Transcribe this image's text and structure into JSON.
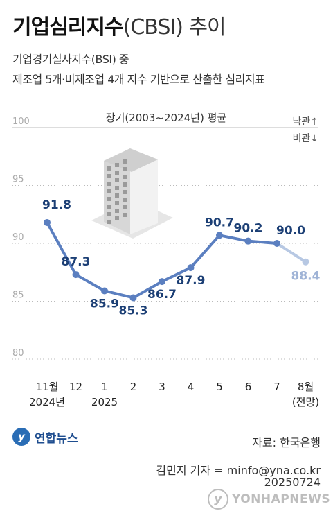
{
  "title": {
    "bold": "기업심리지수",
    "light": "(CBSI) 추이"
  },
  "subtitle": [
    "기업경기실사지수(BSI) 중",
    "제조업 5개·비제조업 4개 지수 기반으로 산출한 심리지표"
  ],
  "chart_data": {
    "type": "line",
    "categories": [
      "11월",
      "12",
      "1",
      "2",
      "3",
      "4",
      "5",
      "6",
      "7",
      "8월"
    ],
    "year_labels": [
      "2024년",
      "",
      "2025",
      "",
      "",
      "",
      "",
      "",
      "",
      "(전망)"
    ],
    "values": [
      91.8,
      87.3,
      85.9,
      85.3,
      86.7,
      87.9,
      90.7,
      90.2,
      90.0,
      88.4
    ],
    "data_labels": [
      "91.8",
      "87.3",
      "85.9",
      "85.3",
      "86.7",
      "87.9",
      "90.7",
      "90.2",
      "90.0",
      "88.4"
    ],
    "projected_from_index": 8,
    "ylim": [
      80,
      100
    ],
    "yticks": [
      "100",
      "95",
      "90",
      "85",
      "80"
    ],
    "baseline_label": "장기(2003~2024년) 평균",
    "up_label": "낙관↑",
    "down_label": "비관↓",
    "colors": {
      "line": "#5b7fc0",
      "projected": "#b7c8e3",
      "label": "#1c3f75",
      "projected_label": "#9fb3d6",
      "grid": "#bbbbbb"
    }
  },
  "footer": {
    "source": "자료: 한국은행",
    "reporter": "김민지 기자 = minfo@yna.co.kr",
    "date": "20250724",
    "logo_text": "연합뉴스",
    "watermark": "YONHAPNEWS"
  }
}
